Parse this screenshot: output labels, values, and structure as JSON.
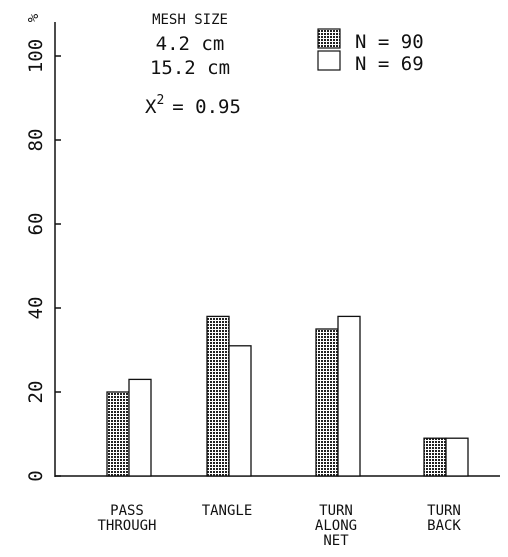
{
  "legend": {
    "title": "MESH SIZE",
    "sizes": [
      "4.2 cm",
      "15.2 cm"
    ],
    "counts": [
      "N = 90",
      "N = 69"
    ]
  },
  "stat_label": "X",
  "stat_exp": "2",
  "stat_value": "= 0.95",
  "chart_data": {
    "type": "bar",
    "categories": [
      [
        "PASS",
        "THROUGH"
      ],
      [
        "TANGLE"
      ],
      [
        "TURN",
        "ALONG",
        "NET"
      ],
      [
        "TURN",
        "BACK"
      ]
    ],
    "series": [
      {
        "name": "4.2 cm",
        "fill": "hatched",
        "values": [
          20,
          38,
          35,
          9
        ]
      },
      {
        "name": "15.2 cm",
        "fill": "white",
        "values": [
          23,
          31,
          38,
          9
        ]
      }
    ],
    "ylabel": "%",
    "ylim": [
      0,
      100
    ],
    "yticks": [
      "0",
      "20",
      "40",
      "60",
      "80",
      "100"
    ],
    "grid": false,
    "legend_position": "top-right"
  }
}
